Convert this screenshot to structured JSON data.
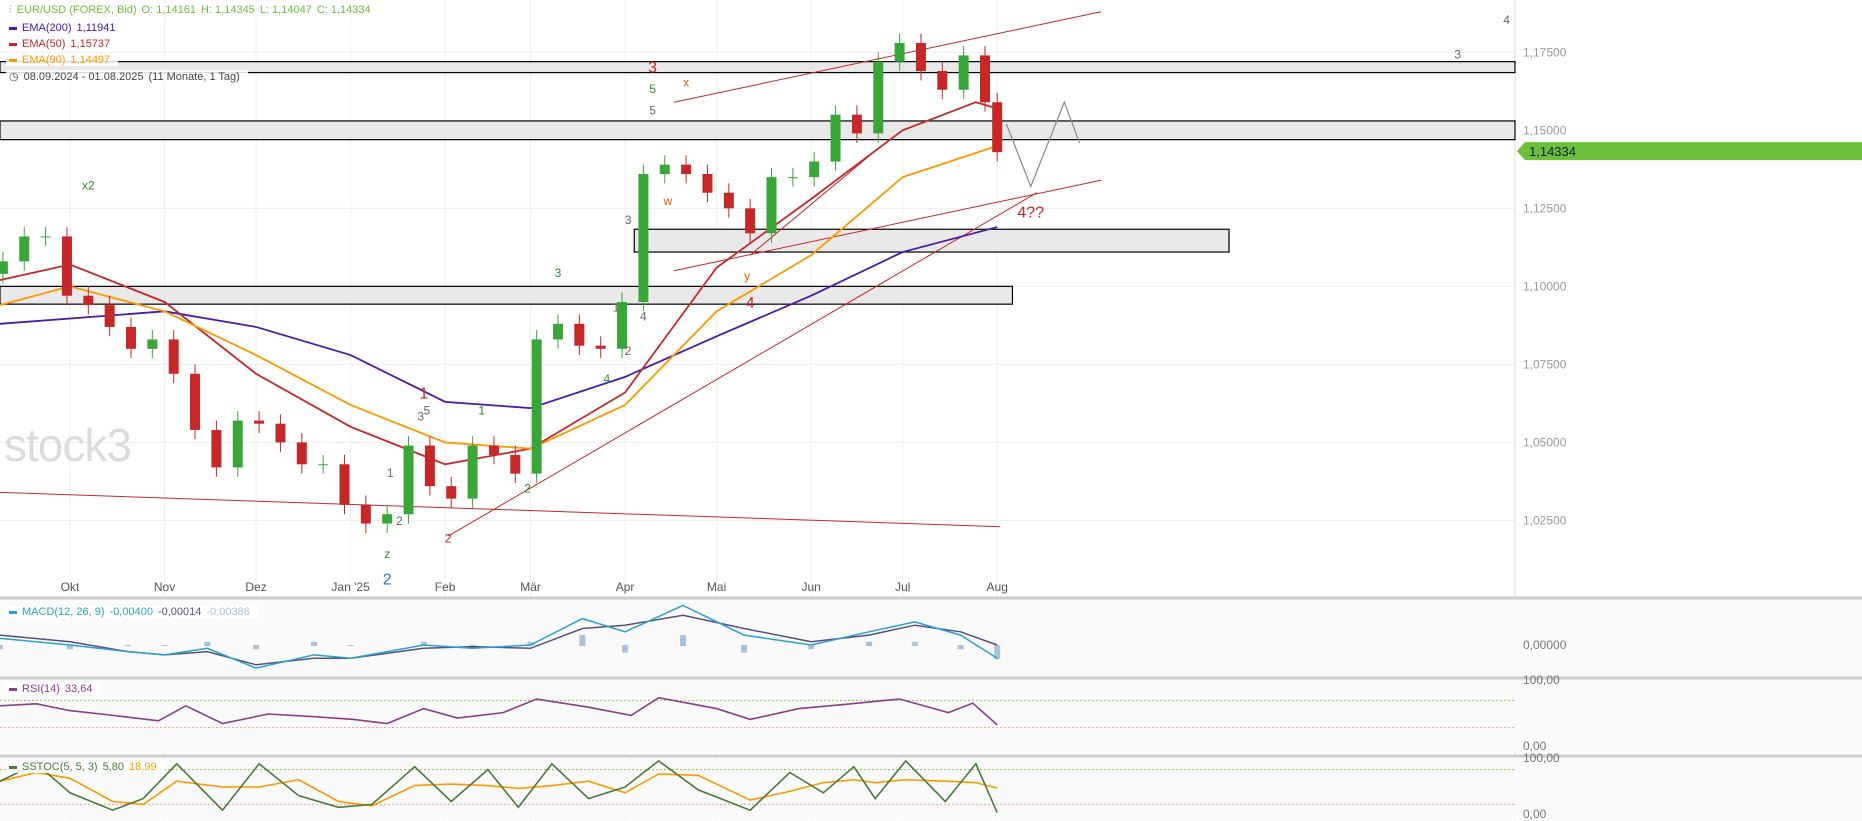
{
  "header": {
    "instrument": "EUR/USD (FOREX, Bid)",
    "open": "O: 1,14161",
    "high": "H: 1,14345",
    "low": "L: 1,14047",
    "close": "C: 1,14334",
    "range": "08.09.2024 - 01.08.2025",
    "range_note": "(11 Monate, 1 Tag)"
  },
  "legend": [
    {
      "label": "EMA(200)",
      "value": "1,11941",
      "color": "#4b1aa8"
    },
    {
      "label": "EMA(50)",
      "value": "1,15737",
      "color": "#c62828"
    },
    {
      "label": "EMA(90)",
      "value": "1,14497",
      "color": "#ff9800"
    }
  ],
  "watermark": "stock3",
  "last_price": "1,14334",
  "colors": {
    "up": "#3aa63a",
    "down": "#c62828",
    "last": "#6cbf3a",
    "zone": "#e4e4e4"
  },
  "chart_data": {
    "type": "candlestick",
    "yticks": [
      "1,17500",
      "1,15000",
      "1,12500",
      "1,10000",
      "1,07500",
      "1,05000",
      "1,02500"
    ],
    "ytick_values": [
      1.175,
      1.15,
      1.125,
      1.1,
      1.075,
      1.05,
      1.025
    ],
    "xticks": [
      {
        "label": "Okt",
        "date": "2024-10-01"
      },
      {
        "label": "Nov",
        "date": "2024-11-01"
      },
      {
        "label": "Dez",
        "date": "2024-12-01"
      },
      {
        "label": "Jan '25",
        "date": "2025-01-01"
      },
      {
        "label": "Feb",
        "date": "2025-02-01"
      },
      {
        "label": "Mär",
        "date": "2025-03-01"
      },
      {
        "label": "Apr",
        "date": "2025-04-01"
      },
      {
        "label": "Mai",
        "date": "2025-05-01"
      },
      {
        "label": "Jun",
        "date": "2025-06-01"
      },
      {
        "label": "Jul",
        "date": "2025-07-01"
      },
      {
        "label": "Aug",
        "date": "2025-08-01"
      }
    ],
    "closes": [
      [
        "2024-09-09",
        1.108
      ],
      [
        "2024-09-16",
        1.116
      ],
      [
        "2024-09-23",
        1.116
      ],
      [
        "2024-09-30",
        1.097
      ],
      [
        "2024-10-07",
        1.094
      ],
      [
        "2024-10-14",
        1.087
      ],
      [
        "2024-10-21",
        1.08
      ],
      [
        "2024-10-28",
        1.083
      ],
      [
        "2024-11-04",
        1.072
      ],
      [
        "2024-11-11",
        1.054
      ],
      [
        "2024-11-18",
        1.042
      ],
      [
        "2024-11-25",
        1.057
      ],
      [
        "2024-12-02",
        1.056
      ],
      [
        "2024-12-09",
        1.05
      ],
      [
        "2024-12-16",
        1.043
      ],
      [
        "2024-12-23",
        1.043
      ],
      [
        "2024-12-30",
        1.03
      ],
      [
        "2025-01-06",
        1.024
      ],
      [
        "2025-01-13",
        1.027
      ],
      [
        "2025-01-20",
        1.049
      ],
      [
        "2025-01-27",
        1.036
      ],
      [
        "2025-02-03",
        1.032
      ],
      [
        "2025-02-10",
        1.049
      ],
      [
        "2025-02-17",
        1.046
      ],
      [
        "2025-02-24",
        1.04
      ],
      [
        "2025-03-03",
        1.083
      ],
      [
        "2025-03-10",
        1.088
      ],
      [
        "2025-03-17",
        1.081
      ],
      [
        "2025-03-24",
        1.08
      ],
      [
        "2025-03-31",
        1.095
      ],
      [
        "2025-04-07",
        1.136
      ],
      [
        "2025-04-14",
        1.139
      ],
      [
        "2025-04-21",
        1.136
      ],
      [
        "2025-04-28",
        1.13
      ],
      [
        "2025-05-05",
        1.125
      ],
      [
        "2025-05-12",
        1.117
      ],
      [
        "2025-05-19",
        1.135
      ],
      [
        "2025-05-26",
        1.135
      ],
      [
        "2025-06-02",
        1.14
      ],
      [
        "2025-06-09",
        1.155
      ],
      [
        "2025-06-16",
        1.149
      ],
      [
        "2025-06-23",
        1.172
      ],
      [
        "2025-06-30",
        1.178
      ],
      [
        "2025-07-07",
        1.169
      ],
      [
        "2025-07-14",
        1.163
      ],
      [
        "2025-07-21",
        1.174
      ],
      [
        "2025-07-28",
        1.159
      ],
      [
        "2025-08-01",
        1.143
      ]
    ],
    "ema200": [
      [
        "2024-09-08",
        1.088
      ],
      [
        "2024-11-01",
        1.092
      ],
      [
        "2024-12-01",
        1.087
      ],
      [
        "2025-01-01",
        1.078
      ],
      [
        "2025-02-01",
        1.063
      ],
      [
        "2025-03-01",
        1.061
      ],
      [
        "2025-04-01",
        1.071
      ],
      [
        "2025-05-01",
        1.084
      ],
      [
        "2025-06-01",
        1.097
      ],
      [
        "2025-07-01",
        1.111
      ],
      [
        "2025-08-01",
        1.119
      ]
    ],
    "ema50": [
      [
        "2024-09-08",
        1.102
      ],
      [
        "2024-10-01",
        1.107
      ],
      [
        "2024-11-01",
        1.095
      ],
      [
        "2024-12-01",
        1.072
      ],
      [
        "2025-01-01",
        1.055
      ],
      [
        "2025-02-01",
        1.043
      ],
      [
        "2025-03-01",
        1.048
      ],
      [
        "2025-04-01",
        1.066
      ],
      [
        "2025-05-01",
        1.106
      ],
      [
        "2025-06-01",
        1.128
      ],
      [
        "2025-07-01",
        1.15
      ],
      [
        "2025-07-25",
        1.159
      ],
      [
        "2025-08-01",
        1.157
      ]
    ],
    "ema90": [
      [
        "2024-09-08",
        1.094
      ],
      [
        "2024-10-01",
        1.1
      ],
      [
        "2024-11-01",
        1.092
      ],
      [
        "2024-12-01",
        1.078
      ],
      [
        "2025-01-01",
        1.062
      ],
      [
        "2025-02-01",
        1.05
      ],
      [
        "2025-03-01",
        1.048
      ],
      [
        "2025-04-01",
        1.062
      ],
      [
        "2025-05-01",
        1.092
      ],
      [
        "2025-06-01",
        1.11
      ],
      [
        "2025-07-01",
        1.135
      ],
      [
        "2025-08-01",
        1.145
      ]
    ],
    "zones": [
      {
        "from": "2024-09-08",
        "to": "2026-01-30",
        "top": 1.172,
        "bottom": 1.1685
      },
      {
        "from": "2024-09-08",
        "to": "2026-01-30",
        "top": 1.153,
        "bottom": 1.147
      },
      {
        "from": "2024-09-08",
        "to": "2025-08-06",
        "top": 1.1,
        "bottom": 1.0943
      },
      {
        "from": "2025-04-04",
        "to": "2025-10-16",
        "top": 1.1183,
        "bottom": 1.111
      }
    ],
    "trendlines": [
      [
        [
          "2024-09-08",
          1.034
        ],
        [
          "2025-08-02",
          1.023
        ]
      ],
      [
        [
          "2025-02-02",
          1.02
        ],
        [
          "2025-08-14",
          1.13
        ]
      ],
      [
        [
          "2025-04-17",
          1.105
        ],
        [
          "2025-09-04",
          1.134
        ]
      ],
      [
        [
          "2025-04-17",
          1.159
        ],
        [
          "2025-09-04",
          1.188
        ]
      ],
      [
        [
          "2025-05-12",
          1.11
        ],
        [
          "2025-06-24",
          1.145
        ]
      ]
    ],
    "projection": [
      [
        "2025-08-04",
        1.152
      ],
      [
        "2025-08-12",
        1.132
      ],
      [
        "2025-08-23",
        1.159
      ],
      [
        "2025-08-28",
        1.146
      ]
    ],
    "annotations": [
      {
        "t": "x2",
        "d": "2024-10-07",
        "p": 1.131,
        "c": "#2e8b2e"
      },
      {
        "t": "1",
        "d": "2025-01-25",
        "p": 1.064,
        "c": "#c62828",
        "big": 1
      },
      {
        "t": "5",
        "d": "2025-01-26",
        "p": 1.059,
        "c": "#666"
      },
      {
        "t": "3",
        "d": "2025-01-24",
        "p": 1.057,
        "c": "#666"
      },
      {
        "t": "z",
        "d": "2025-01-13",
        "p": 1.013,
        "c": "#2e8b2e"
      },
      {
        "t": "2",
        "d": "2025-01-13",
        "p": 1.0045,
        "c": "#2a7fd4",
        "big": 1
      },
      {
        "t": "1",
        "d": "2025-01-14",
        "p": 1.039,
        "c": "#666"
      },
      {
        "t": "2",
        "d": "2025-01-17",
        "p": 1.0235,
        "c": "#666"
      },
      {
        "t": "2",
        "d": "2025-02-02",
        "p": 1.018,
        "c": "#c62828"
      },
      {
        "t": "1",
        "d": "2025-02-13",
        "p": 1.059,
        "c": "#2e8b2e"
      },
      {
        "t": "2",
        "d": "2025-02-28",
        "p": 1.034,
        "c": "#2e8b2e"
      },
      {
        "t": "3",
        "d": "2025-03-10",
        "p": 1.103,
        "c": "#2e8b2e"
      },
      {
        "t": "4",
        "d": "2025-03-26",
        "p": 1.069,
        "c": "#2e8b2e"
      },
      {
        "t": "1",
        "d": "2025-03-29",
        "p": 1.092,
        "c": "#666"
      },
      {
        "t": "2",
        "d": "2025-04-02",
        "p": 1.078,
        "c": "#666"
      },
      {
        "t": "4",
        "d": "2025-04-07",
        "p": 1.089,
        "c": "#666"
      },
      {
        "t": "3",
        "d": "2025-04-02",
        "p": 1.12,
        "c": "#666"
      },
      {
        "t": "3",
        "d": "2025-04-10",
        "p": 1.1685,
        "c": "#c62828",
        "big": 1
      },
      {
        "t": "5",
        "d": "2025-04-10",
        "p": 1.162,
        "c": "#2e8b2e"
      },
      {
        "t": "5",
        "d": "2025-04-10",
        "p": 1.155,
        "c": "#666"
      },
      {
        "t": "x",
        "d": "2025-04-21",
        "p": 1.164,
        "c": "#e65c00"
      },
      {
        "t": "w",
        "d": "2025-04-15",
        "p": 1.126,
        "c": "#e65c00"
      },
      {
        "t": "y",
        "d": "2025-05-11",
        "p": 1.102,
        "c": "#e65c00"
      },
      {
        "t": "4",
        "d": "2025-05-12",
        "p": 1.093,
        "c": "#c62828",
        "big": 1
      },
      {
        "t": "4??",
        "d": "2025-08-12",
        "p": 1.122,
        "c": "#c62828",
        "big": 1
      },
      {
        "t": "4",
        "d": "2026-01-15",
        "p": 1.184,
        "c": "#666"
      },
      {
        "t": "3",
        "d": "2025-12-30",
        "p": 1.173,
        "c": "#666"
      }
    ]
  },
  "macd": {
    "label": "MACD(12, 26, 9)",
    "v1": "-0,00400",
    "v2": "-0,00014",
    "v3": "-0,00386",
    "zero": "0,00000",
    "colors": [
      "#2aa0d0",
      "#5a4f80",
      "#a9c3df"
    ],
    "line": [
      [
        "2024-09-08",
        0.002
      ],
      [
        "2024-10-01",
        0.0
      ],
      [
        "2024-10-20",
        -0.002
      ],
      [
        "2024-11-01",
        -0.003
      ],
      [
        "2024-11-15",
        -0.001
      ],
      [
        "2024-12-01",
        -0.007
      ],
      [
        "2024-12-20",
        -0.003
      ],
      [
        "2025-01-01",
        -0.004
      ],
      [
        "2025-01-25",
        0.0
      ],
      [
        "2025-02-10",
        -0.001
      ],
      [
        "2025-03-01",
        0.0
      ],
      [
        "2025-03-18",
        0.008
      ],
      [
        "2025-04-01",
        0.004
      ],
      [
        "2025-04-20",
        0.012
      ],
      [
        "2025-05-10",
        0.003
      ],
      [
        "2025-06-01",
        0.0
      ],
      [
        "2025-06-20",
        0.004
      ],
      [
        "2025-07-05",
        0.007
      ],
      [
        "2025-07-20",
        0.003
      ],
      [
        "2025-08-01",
        -0.004
      ]
    ],
    "signal": [
      [
        "2024-09-08",
        0.003
      ],
      [
        "2024-10-01",
        0.001
      ],
      [
        "2024-10-20",
        -0.002
      ],
      [
        "2024-11-01",
        -0.003
      ],
      [
        "2024-11-15",
        -0.002
      ],
      [
        "2024-12-01",
        -0.006
      ],
      [
        "2024-12-20",
        -0.004
      ],
      [
        "2025-01-01",
        -0.004
      ],
      [
        "2025-01-25",
        -0.001
      ],
      [
        "2025-02-10",
        -0.0005
      ],
      [
        "2025-03-01",
        -0.001
      ],
      [
        "2025-03-18",
        0.005
      ],
      [
        "2025-04-01",
        0.006
      ],
      [
        "2025-04-20",
        0.009
      ],
      [
        "2025-05-10",
        0.005
      ],
      [
        "2025-06-01",
        0.001
      ],
      [
        "2025-06-20",
        0.003
      ],
      [
        "2025-07-05",
        0.006
      ],
      [
        "2025-07-20",
        0.004
      ],
      [
        "2025-08-01",
        0.0
      ]
    ]
  },
  "rsi": {
    "label": "RSI(14)",
    "value": "33,64",
    "top": "100,00",
    "bottom": "0,00",
    "color": "#8e3a8e",
    "line": [
      [
        "2024-09-08",
        62
      ],
      [
        "2024-09-20",
        65
      ],
      [
        "2024-10-01",
        55
      ],
      [
        "2024-10-15",
        48
      ],
      [
        "2024-10-30",
        40
      ],
      [
        "2024-11-08",
        62
      ],
      [
        "2024-11-20",
        36
      ],
      [
        "2024-12-05",
        50
      ],
      [
        "2024-12-20",
        46
      ],
      [
        "2025-01-02",
        42
      ],
      [
        "2025-01-13",
        36
      ],
      [
        "2025-01-25",
        58
      ],
      [
        "2025-02-05",
        44
      ],
      [
        "2025-02-20",
        52
      ],
      [
        "2025-03-03",
        72
      ],
      [
        "2025-03-20",
        60
      ],
      [
        "2025-04-03",
        48
      ],
      [
        "2025-04-12",
        74
      ],
      [
        "2025-05-01",
        58
      ],
      [
        "2025-05-12",
        42
      ],
      [
        "2025-05-28",
        58
      ],
      [
        "2025-06-12",
        64
      ],
      [
        "2025-06-30",
        72
      ],
      [
        "2025-07-16",
        52
      ],
      [
        "2025-07-24",
        66
      ],
      [
        "2025-08-01",
        34
      ]
    ]
  },
  "sstoc": {
    "label": "SSTOC(5, 5, 3)",
    "k": "5,80",
    "d": "18,99",
    "top": "100,00",
    "bottom": "0,00",
    "colors": [
      "#4a7a3a",
      "#ff9800"
    ],
    "line": [
      [
        "2024-09-08",
        60
      ],
      [
        "2024-09-20",
        90
      ],
      [
        "2024-10-01",
        40
      ],
      [
        "2024-10-15",
        10
      ],
      [
        "2024-10-25",
        30
      ],
      [
        "2024-11-05",
        90
      ],
      [
        "2024-11-20",
        10
      ],
      [
        "2024-12-02",
        90
      ],
      [
        "2024-12-15",
        35
      ],
      [
        "2024-12-28",
        15
      ],
      [
        "2025-01-08",
        20
      ],
      [
        "2025-01-22",
        85
      ],
      [
        "2025-02-03",
        25
      ],
      [
        "2025-02-15",
        80
      ],
      [
        "2025-02-25",
        15
      ],
      [
        "2025-03-08",
        90
      ],
      [
        "2025-03-20",
        30
      ],
      [
        "2025-04-01",
        50
      ],
      [
        "2025-04-12",
        95
      ],
      [
        "2025-04-25",
        45
      ],
      [
        "2025-05-12",
        10
      ],
      [
        "2025-05-25",
        75
      ],
      [
        "2025-06-05",
        40
      ],
      [
        "2025-06-15",
        85
      ],
      [
        "2025-06-22",
        30
      ],
      [
        "2025-07-02",
        95
      ],
      [
        "2025-07-15",
        25
      ],
      [
        "2025-07-25",
        90
      ],
      [
        "2025-08-01",
        6
      ]
    ]
  }
}
